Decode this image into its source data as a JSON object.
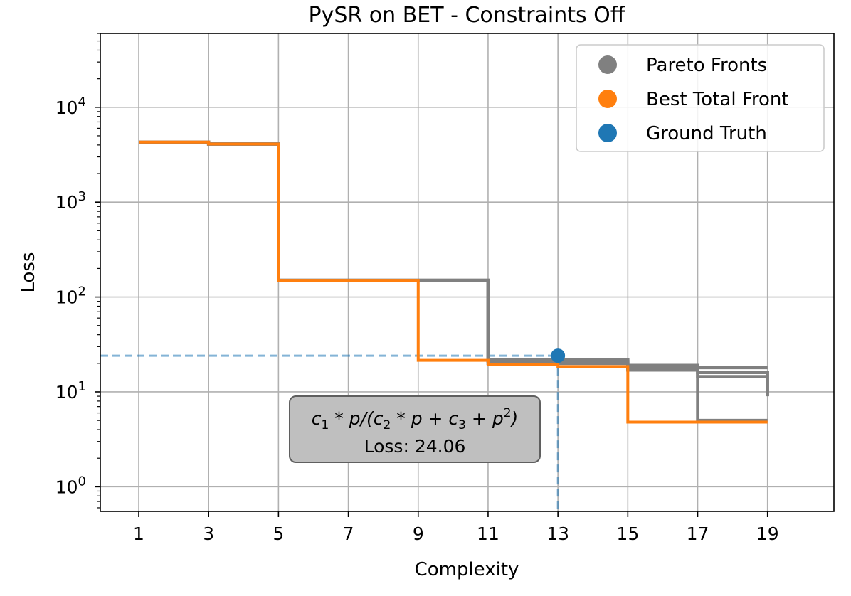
{
  "chart_data": {
    "type": "line",
    "title": "PySR on BET - Constraints Off",
    "xlabel": "Complexity",
    "ylabel": "Loss",
    "yscale": "log",
    "xlim": [
      -0.1,
      20.9
    ],
    "ylim": [
      0.55,
      60000
    ],
    "xticks": [
      1,
      3,
      5,
      7,
      9,
      11,
      13,
      15,
      17,
      19
    ],
    "yticks": [
      {
        "value": 1,
        "base": "10",
        "exp": "0"
      },
      {
        "value": 10,
        "base": "10",
        "exp": "1"
      },
      {
        "value": 100,
        "base": "10",
        "exp": "2"
      },
      {
        "value": 1000,
        "base": "10",
        "exp": "3"
      },
      {
        "value": 10000,
        "base": "10",
        "exp": "4"
      }
    ],
    "grid": true,
    "legend_position": "top-right",
    "legend": [
      {
        "label": "Pareto Fronts",
        "color": "#808080"
      },
      {
        "label": "Best Total Front",
        "color": "#ff7f0e"
      },
      {
        "label": "Ground Truth",
        "color": "#1f77b4"
      }
    ],
    "series": [
      {
        "name": "Pareto Fronts",
        "color": "#808080",
        "step": "post",
        "points": [
          [
            1,
            4300
          ],
          [
            3,
            4100
          ],
          [
            5,
            150
          ],
          [
            11,
            20
          ],
          [
            15,
            17
          ],
          [
            17,
            5
          ],
          [
            19,
            5
          ]
        ]
      },
      {
        "name": "Pareto Fronts",
        "color": "#808080",
        "step": "post",
        "points": [
          [
            1,
            4300
          ],
          [
            3,
            4100
          ],
          [
            5,
            150
          ],
          [
            9,
            150
          ],
          [
            11,
            22
          ],
          [
            15,
            19
          ],
          [
            17,
            18
          ],
          [
            19,
            18
          ]
        ]
      },
      {
        "name": "Pareto Fronts",
        "color": "#808080",
        "step": "post",
        "points": [
          [
            1,
            4300
          ],
          [
            3,
            4100
          ],
          [
            5,
            150
          ],
          [
            9,
            150
          ],
          [
            11,
            21
          ],
          [
            15,
            18
          ],
          [
            17,
            16
          ],
          [
            19,
            9
          ]
        ]
      },
      {
        "name": "Pareto Fronts",
        "color": "#808080",
        "step": "post",
        "points": [
          [
            1,
            4300
          ],
          [
            3,
            4100
          ],
          [
            5,
            150
          ],
          [
            9,
            150
          ],
          [
            11,
            21
          ],
          [
            15,
            17.5
          ],
          [
            17,
            14.5
          ],
          [
            19,
            14.5
          ]
        ]
      },
      {
        "name": "Best Total Front",
        "color": "#ff7f0e",
        "step": "post",
        "points": [
          [
            1,
            4300
          ],
          [
            3,
            4100
          ],
          [
            5,
            150
          ],
          [
            9,
            21.5
          ],
          [
            11,
            19.5
          ],
          [
            13,
            18.5
          ],
          [
            15,
            4.8
          ],
          [
            19,
            4.8
          ]
        ]
      }
    ],
    "ground_truth": {
      "x": 13,
      "y": 24.06,
      "color": "#1f77b4"
    },
    "annotation": {
      "formula_parts": [
        "c",
        "1",
        " * p/(c",
        "2",
        " * p + c",
        "3",
        " + p",
        "2",
        ")"
      ],
      "loss_text": "Loss: 24.06"
    }
  }
}
